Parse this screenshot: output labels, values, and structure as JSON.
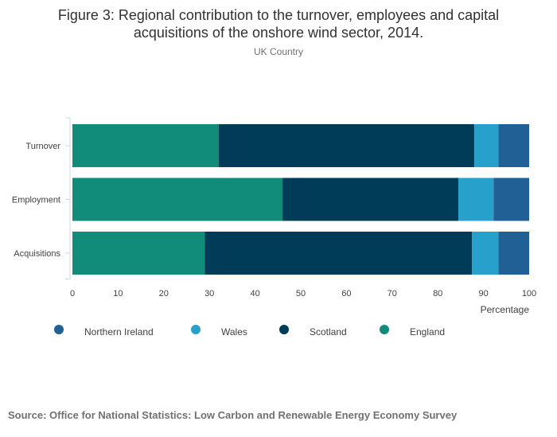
{
  "chart_data": {
    "type": "bar",
    "orientation": "horizontal",
    "stacked": true,
    "title": "Figure 3: Regional contribution to the turnover, employees and capital acquisitions of the onshore wind sector, 2014.",
    "title_lines": [
      "Figure 3: Regional contribution to the turnover, employees and capital",
      "acquisitions of the onshore wind sector, 2014."
    ],
    "subtitle": "UK Country",
    "categories": [
      "Turnover",
      "Employment",
      "Acquisitions"
    ],
    "series": [
      {
        "name": "England",
        "color": "#118c7b",
        "values": [
          32,
          46,
          29
        ]
      },
      {
        "name": "Scotland",
        "color": "#003c57",
        "values": [
          56,
          38.5,
          58.5
        ]
      },
      {
        "name": "Wales",
        "color": "#27a0cc",
        "values": [
          5.3,
          7.7,
          5.8
        ]
      },
      {
        "name": "Northern Ireland",
        "color": "#206095",
        "values": [
          6.7,
          7.8,
          6.7
        ]
      }
    ],
    "legend": [
      "Northern Ireland",
      "Wales",
      "Scotland",
      "England"
    ],
    "xlabel": "Percentage",
    "ylabel": "",
    "xlim": [
      0,
      100
    ],
    "xticks": [
      "0",
      "10",
      "20",
      "30",
      "40",
      "50",
      "60",
      "70",
      "80",
      "90",
      "100"
    ],
    "grid": false,
    "legend_position": "bottom"
  },
  "source": "Source: Office for National Statistics: Low Carbon and Renewable Energy Economy Survey"
}
